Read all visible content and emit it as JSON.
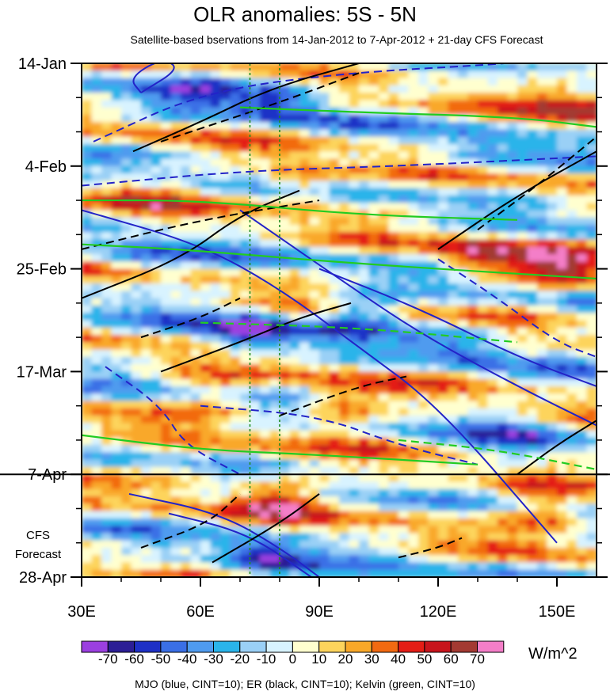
{
  "chart_data": {
    "type": "heatmap",
    "title": "OLR anomalies: 5S - 5N",
    "subtitle": "Satellite-based bservations from 14-Jan-2012 to 7-Apr-2012 + 21-day CFS Forecast",
    "x_range": [
      30,
      160
    ],
    "x_ticks": [
      {
        "value": 30,
        "label": "30E"
      },
      {
        "value": 60,
        "label": "60E"
      },
      {
        "value": 90,
        "label": "90E"
      },
      {
        "value": 120,
        "label": "120E"
      },
      {
        "value": 150,
        "label": "150E"
      }
    ],
    "y_range_days": [
      0,
      105
    ],
    "y_ticks": [
      {
        "value": 0,
        "label": "14-Jan"
      },
      {
        "value": 21,
        "label": "4-Feb"
      },
      {
        "value": 42,
        "label": "25-Feb"
      },
      {
        "value": 63,
        "label": "17-Mar"
      },
      {
        "value": 84,
        "label": "7-Apr"
      },
      {
        "value": 105,
        "label": "28-Apr"
      }
    ],
    "observation_end_day": 84,
    "forecast_label_line1": "CFS",
    "forecast_label_line2": "Forecast",
    "reference_longitudes": [
      72.5,
      80
    ],
    "colorbar": {
      "levels": [
        "-70",
        "-60",
        "-50",
        "-40",
        "-30",
        "-20",
        "-10",
        "0",
        "10",
        "20",
        "30",
        "40",
        "50",
        "60",
        "70"
      ],
      "colors": [
        "#9b3fe0",
        "#2c1e95",
        "#1e30c6",
        "#3a6fe6",
        "#4f9bef",
        "#2ab4ea",
        "#9ad0f6",
        "#d8f3ff",
        "#ffffcf",
        "#fdd45c",
        "#f9a829",
        "#f26a11",
        "#e41d16",
        "#c8141c",
        "#a33a32",
        "#f47ec8"
      ],
      "units": "W/m^2"
    },
    "anomaly_features": [
      {
        "lon": 60,
        "day": 5,
        "value": -40
      },
      {
        "lon": 80,
        "day": 7,
        "value": -55
      },
      {
        "lon": 86,
        "day": 25,
        "value": 45
      },
      {
        "lon": 45,
        "day": 27,
        "value": 25
      },
      {
        "lon": 130,
        "day": 40,
        "value": 45
      },
      {
        "lon": 150,
        "day": 42,
        "value": 50
      },
      {
        "lon": 72,
        "day": 55,
        "value": -60
      },
      {
        "lon": 100,
        "day": 51,
        "value": -50
      },
      {
        "lon": 125,
        "day": 57,
        "value": -40
      },
      {
        "lon": 65,
        "day": 68,
        "value": 30
      },
      {
        "lon": 95,
        "day": 70,
        "value": 45
      },
      {
        "lon": 45,
        "day": 40,
        "value": -35
      },
      {
        "lon": 56,
        "day": 83,
        "value": 25
      },
      {
        "lon": 80,
        "day": 89,
        "value": 45
      },
      {
        "lon": 76,
        "day": 101,
        "value": -55
      },
      {
        "lon": 148,
        "day": 92,
        "value": 45
      },
      {
        "lon": 155,
        "day": 8,
        "value": 45
      },
      {
        "lon": 130,
        "day": 18,
        "value": -25
      },
      {
        "lon": 110,
        "day": 88,
        "value": 20
      },
      {
        "lon": 140,
        "day": 78,
        "value": -30
      }
    ],
    "wave_contours": [
      {
        "type": "MJO",
        "sign": "negative",
        "points": [
          [
            33,
            16
          ],
          [
            60,
            6
          ],
          [
            95,
            2
          ],
          [
            140,
            0
          ],
          [
            160,
            -2
          ]
        ]
      },
      {
        "type": "MJO",
        "sign": "positive",
        "points": [
          [
            45,
            6
          ],
          [
            55,
            1
          ],
          [
            50,
            -1
          ],
          [
            42,
            3
          ],
          [
            45,
            6
          ]
        ]
      },
      {
        "type": "MJO",
        "sign": "negative",
        "points": [
          [
            30,
            25
          ],
          [
            70,
            22
          ],
          [
            110,
            21
          ],
          [
            160,
            19
          ]
        ]
      },
      {
        "type": "MJO",
        "sign": "positive",
        "points": [
          [
            30,
            30
          ],
          [
            60,
            37
          ],
          [
            80,
            46
          ],
          [
            100,
            58
          ],
          [
            120,
            70
          ],
          [
            150,
            98
          ]
        ]
      },
      {
        "type": "MJO",
        "sign": "positive",
        "points": [
          [
            70,
            30
          ],
          [
            95,
            44
          ],
          [
            115,
            55
          ],
          [
            140,
            66
          ],
          [
            160,
            74
          ]
        ]
      },
      {
        "type": "MJO",
        "sign": "positive",
        "points": [
          [
            90,
            42
          ],
          [
            115,
            50
          ],
          [
            140,
            60
          ],
          [
            160,
            66
          ]
        ]
      },
      {
        "type": "MJO",
        "sign": "negative",
        "points": [
          [
            60,
            70
          ],
          [
            90,
            72
          ],
          [
            110,
            78
          ],
          [
            130,
            82
          ]
        ]
      },
      {
        "type": "MJO",
        "sign": "negative",
        "points": [
          [
            36,
            62
          ],
          [
            50,
            70
          ],
          [
            56,
            78
          ],
          [
            70,
            84
          ]
        ]
      },
      {
        "type": "MJO",
        "sign": "positive",
        "points": [
          [
            42,
            88
          ],
          [
            65,
            92
          ],
          [
            80,
            99
          ],
          [
            90,
            105
          ]
        ]
      },
      {
        "type": "MJO",
        "sign": "positive",
        "points": [
          [
            52,
            92
          ],
          [
            72,
            96
          ],
          [
            88,
            105
          ]
        ]
      },
      {
        "type": "MJO",
        "sign": "negative",
        "points": [
          [
            120,
            40
          ],
          [
            135,
            48
          ],
          [
            150,
            57
          ],
          [
            160,
            60
          ]
        ]
      },
      {
        "type": "ER",
        "sign": "positive",
        "points": [
          [
            43,
            18
          ],
          [
            60,
            12
          ],
          [
            78,
            5
          ],
          [
            100,
            0
          ]
        ]
      },
      {
        "type": "ER",
        "sign": "negative",
        "points": [
          [
            50,
            16
          ],
          [
            80,
            8
          ],
          [
            100,
            2
          ]
        ]
      },
      {
        "type": "ER",
        "sign": "positive",
        "points": [
          [
            30,
            48
          ],
          [
            55,
            40
          ],
          [
            70,
            31
          ],
          [
            85,
            26
          ]
        ]
      },
      {
        "type": "ER",
        "sign": "negative",
        "points": [
          [
            30,
            38
          ],
          [
            60,
            32
          ],
          [
            90,
            28
          ]
        ]
      },
      {
        "type": "ER",
        "sign": "positive",
        "points": [
          [
            50,
            63
          ],
          [
            70,
            57
          ],
          [
            85,
            52
          ],
          [
            98,
            49
          ]
        ]
      },
      {
        "type": "ER",
        "sign": "negative",
        "points": [
          [
            45,
            56
          ],
          [
            60,
            52
          ],
          [
            70,
            48
          ]
        ]
      },
      {
        "type": "ER",
        "sign": "negative",
        "points": [
          [
            80,
            72
          ],
          [
            100,
            66
          ],
          [
            112,
            64
          ]
        ]
      },
      {
        "type": "ER",
        "sign": "positive",
        "points": [
          [
            120,
            38
          ],
          [
            140,
            27
          ],
          [
            160,
            18
          ]
        ]
      },
      {
        "type": "ER",
        "sign": "positive",
        "points": [
          [
            140,
            84
          ],
          [
            150,
            78
          ],
          [
            160,
            73
          ]
        ]
      },
      {
        "type": "ER",
        "sign": "negative",
        "points": [
          [
            130,
            34
          ],
          [
            145,
            25
          ],
          [
            160,
            15
          ]
        ]
      },
      {
        "type": "ER",
        "sign": "positive",
        "points": [
          [
            63,
            102
          ],
          [
            80,
            94
          ],
          [
            90,
            88
          ]
        ]
      },
      {
        "type": "ER",
        "sign": "negative",
        "points": [
          [
            45,
            99
          ],
          [
            62,
            94
          ],
          [
            70,
            88
          ]
        ]
      },
      {
        "type": "ER",
        "sign": "negative",
        "points": [
          [
            110,
            101
          ],
          [
            120,
            99
          ],
          [
            126,
            97
          ]
        ]
      },
      {
        "type": "Kelvin",
        "sign": "positive",
        "points": [
          [
            30,
            28
          ],
          [
            60,
            28
          ],
          [
            100,
            31
          ],
          [
            140,
            32
          ]
        ]
      },
      {
        "type": "Kelvin",
        "sign": "positive",
        "points": [
          [
            30,
            37
          ],
          [
            55,
            38
          ],
          [
            100,
            41
          ],
          [
            160,
            44
          ]
        ]
      },
      {
        "type": "Kelvin",
        "sign": "negative",
        "points": [
          [
            60,
            53
          ],
          [
            100,
            54
          ],
          [
            140,
            57
          ]
        ]
      },
      {
        "type": "Kelvin",
        "sign": "positive",
        "points": [
          [
            30,
            76
          ],
          [
            60,
            79
          ],
          [
            90,
            80
          ],
          [
            130,
            82
          ]
        ]
      },
      {
        "type": "Kelvin",
        "sign": "positive",
        "points": [
          [
            70,
            9
          ],
          [
            100,
            10
          ],
          [
            140,
            11
          ],
          [
            160,
            13
          ]
        ]
      },
      {
        "type": "Kelvin",
        "sign": "negative",
        "points": [
          [
            110,
            77
          ],
          [
            135,
            79
          ],
          [
            160,
            83
          ]
        ]
      }
    ]
  },
  "caption": "MJO (blue, CINT=10); ER (black, CINT=10); Kelvin (green, CINT=10)"
}
